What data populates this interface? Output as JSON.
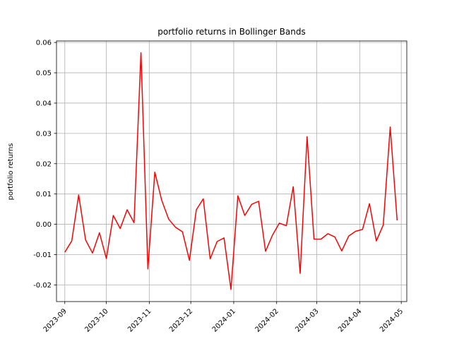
{
  "chart_data": {
    "type": "line",
    "title": "portfolio returns in Bollinger Bands",
    "xlabel": "",
    "ylabel": "portfolio returns",
    "grid": true,
    "xlim": [
      "2023-08-26",
      "2024-05-05"
    ],
    "ylim": [
      -0.0255,
      0.0605
    ],
    "x_ticks": [
      "2023-09",
      "2023-10",
      "2023-11",
      "2023-12",
      "2024-01",
      "2024-02",
      "2024-03",
      "2024-04",
      "2024-05"
    ],
    "y_ticks": [
      "-0.02",
      "-0.01",
      "0.00",
      "0.01",
      "0.02",
      "0.03",
      "0.04",
      "0.05",
      "0.06"
    ],
    "y_tick_values": [
      -0.02,
      -0.01,
      0.0,
      0.01,
      0.02,
      0.03,
      0.04,
      0.05,
      0.06
    ],
    "series": [
      {
        "name": "",
        "color": "#ff0000",
        "x": [
          "2023-09-01",
          "2023-09-06",
          "2023-09-11",
          "2023-09-16",
          "2023-09-21",
          "2023-09-26",
          "2023-10-01",
          "2023-10-06",
          "2023-10-11",
          "2023-10-16",
          "2023-10-21",
          "2023-10-26",
          "2023-10-31",
          "2023-11-05",
          "2023-11-10",
          "2023-11-15",
          "2023-11-20",
          "2023-11-25",
          "2023-11-30",
          "2023-12-05",
          "2023-12-10",
          "2023-12-15",
          "2023-12-20",
          "2023-12-25",
          "2023-12-30",
          "2024-01-04",
          "2024-01-09",
          "2024-01-14",
          "2024-01-19",
          "2024-01-24",
          "2024-01-29",
          "2024-02-03",
          "2024-02-08",
          "2024-02-13",
          "2024-02-18",
          "2024-02-23",
          "2024-02-28",
          "2024-03-04",
          "2024-03-09",
          "2024-03-14",
          "2024-03-19",
          "2024-03-24",
          "2024-03-29",
          "2024-04-03",
          "2024-04-08",
          "2024-04-13",
          "2024-04-18",
          "2024-04-23",
          "2024-04-28"
        ],
        "values": [
          -0.0092,
          -0.0055,
          0.0097,
          -0.0052,
          -0.0095,
          -0.0028,
          -0.0113,
          0.0029,
          -0.0014,
          0.0048,
          0.0005,
          0.0566,
          -0.0147,
          0.0172,
          0.0079,
          0.0017,
          -0.001,
          -0.0025,
          -0.0119,
          0.0048,
          0.0084,
          -0.0114,
          -0.0057,
          -0.0045,
          -0.0215,
          0.0094,
          0.0029,
          0.0066,
          0.0076,
          -0.0089,
          -0.0036,
          0.0004,
          -0.0005,
          0.0124,
          -0.0162,
          0.0289,
          -0.0049,
          -0.0049,
          -0.0031,
          -0.0042,
          -0.0088,
          -0.0039,
          -0.0023,
          -0.0017,
          0.0068,
          -0.0055,
          -0.0002,
          0.0321,
          0.0013
        ]
      }
    ]
  }
}
